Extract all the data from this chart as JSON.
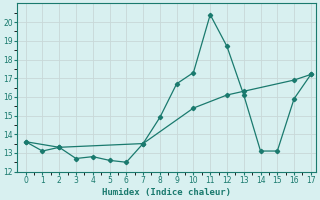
{
  "line1_x": [
    0,
    1,
    2,
    3,
    4,
    5,
    6,
    7,
    8,
    9,
    10,
    11,
    12,
    13,
    14,
    15,
    16,
    17
  ],
  "line1_y": [
    13.6,
    13.1,
    13.3,
    12.7,
    12.8,
    12.6,
    12.5,
    13.5,
    14.9,
    16.7,
    17.3,
    20.4,
    18.7,
    16.1,
    13.1,
    13.1,
    15.9,
    17.2
  ],
  "line2_x": [
    0,
    2,
    7,
    10,
    12,
    13,
    16,
    17
  ],
  "line2_y": [
    13.6,
    13.3,
    13.5,
    15.4,
    16.1,
    16.3,
    16.9,
    17.2
  ],
  "line_color": "#1a7a6e",
  "bg_color": "#d8f0f0",
  "grid_color_major": "#c8d8d8",
  "grid_color_minor": "#e0ecec",
  "xlabel": "Humidex (Indice chaleur)",
  "ylim": [
    12,
    21
  ],
  "xlim": [
    -0.5,
    17.3
  ],
  "yticks": [
    12,
    13,
    14,
    15,
    16,
    17,
    18,
    19,
    20
  ],
  "xticks": [
    0,
    1,
    2,
    3,
    4,
    5,
    6,
    7,
    8,
    9,
    10,
    11,
    12,
    13,
    14,
    15,
    16,
    17
  ]
}
